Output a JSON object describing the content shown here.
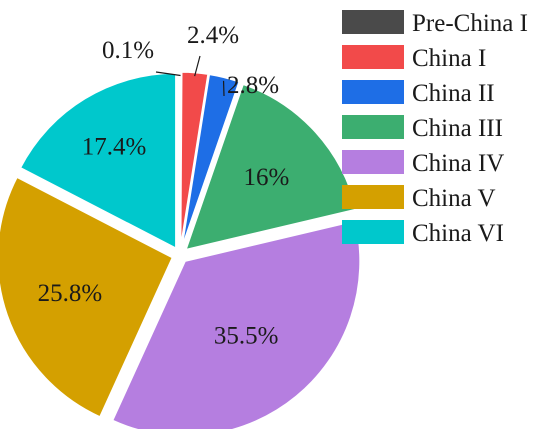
{
  "chart_data": {
    "type": "pie",
    "title": "",
    "slices": [
      {
        "label": "Pre-China I",
        "value": 0.1,
        "display": "0.1%",
        "color": "#4a4a4a"
      },
      {
        "label": "China I",
        "value": 2.4,
        "display": "2.4%",
        "color": "#f24a4a"
      },
      {
        "label": "China II",
        "value": 2.8,
        "display": "2.8%",
        "color": "#1e6ee6"
      },
      {
        "label": "China III",
        "value": 16.0,
        "display": "16%",
        "color": "#3cae70"
      },
      {
        "label": "China IV",
        "value": 35.5,
        "display": "35.5%",
        "color": "#b57ee0"
      },
      {
        "label": "China V",
        "value": 25.8,
        "display": "25.8%",
        "color": "#d4a000"
      },
      {
        "label": "China VI",
        "value": 17.4,
        "display": "17.4%",
        "color": "#00c8cc"
      }
    ],
    "legend_placement": "right",
    "exploded": true,
    "start_angle": "12 o'clock, clockwise"
  }
}
